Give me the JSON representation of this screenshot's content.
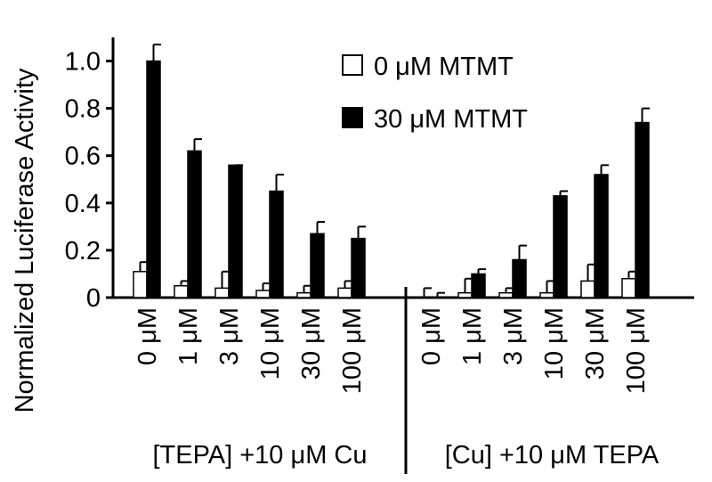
{
  "chart_data": {
    "type": "bar",
    "title": "",
    "ylabel": "Normalized Luciferase Activity",
    "ylim": [
      0,
      1.1
    ],
    "yticks": [
      "0",
      "0.2",
      "0.4",
      "0.6",
      "0.8",
      "1.0"
    ],
    "ytick_values": [
      0,
      0.2,
      0.4,
      0.6,
      0.8,
      1.0
    ],
    "groups": [
      {
        "label": "[TEPA] +10 μM Cu",
        "categories": [
          "0 μM",
          "1 μM",
          "3 μM",
          "10 μM",
          "30 μM",
          "100 μM"
        ]
      },
      {
        "label": "[Cu] +10 μM TEPA",
        "categories": [
          "0 μM",
          "1 μM",
          "3 μM",
          "10 μM",
          "30 μM",
          "100 μM"
        ]
      }
    ],
    "series": [
      {
        "name": "0 μM MTMT",
        "color": "#ffffff",
        "values": [
          0.11,
          0.05,
          0.04,
          0.03,
          0.02,
          0.04,
          0.0,
          0.02,
          0.02,
          0.02,
          0.07,
          0.08
        ],
        "errors": [
          0.04,
          0.02,
          0.07,
          0.03,
          0.03,
          0.03,
          0.04,
          0.06,
          0.02,
          0.05,
          0.07,
          0.03
        ]
      },
      {
        "name": "30 μM MTMT",
        "color": "#000000",
        "values": [
          1.0,
          0.62,
          0.56,
          0.45,
          0.27,
          0.25,
          0.0,
          0.1,
          0.16,
          0.43,
          0.52,
          0.74
        ],
        "errors": [
          0.07,
          0.05,
          0.0,
          0.07,
          0.05,
          0.05,
          0.02,
          0.02,
          0.06,
          0.02,
          0.04,
          0.06
        ]
      }
    ],
    "legend_position": "top-right",
    "grid": false
  }
}
